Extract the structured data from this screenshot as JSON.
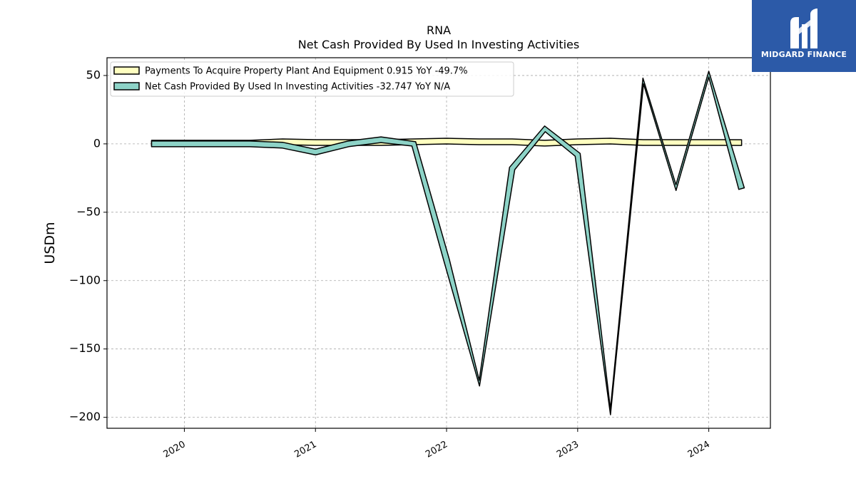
{
  "chart_data": {
    "type": "area",
    "title": "RNA",
    "subtitle": "Net Cash Provided By Used In Investing Activities",
    "ylabel": "USDm",
    "xlabel": "",
    "ylim": [
      -208,
      63
    ],
    "xlim": [
      2019.41,
      2024.47
    ],
    "yticks": [
      50,
      0,
      -50,
      -100,
      -150,
      -200
    ],
    "ytick_labels": [
      "50",
      "0",
      "−50",
      "−100",
      "−150",
      "−200"
    ],
    "xticks": [
      2020,
      2021,
      2022,
      2023,
      2024
    ],
    "xtick_labels": [
      "2020",
      "2021",
      "2022",
      "2023",
      "2024"
    ],
    "grid": true,
    "legend_position": "top-left",
    "x": [
      2019.75,
      2020.0,
      2020.25,
      2020.5,
      2020.75,
      2021.0,
      2021.25,
      2021.5,
      2021.75,
      2022.0,
      2022.25,
      2022.5,
      2022.75,
      2023.0,
      2023.25,
      2023.5,
      2023.75,
      2024.0,
      2024.25
    ],
    "series": [
      {
        "name": "Payments To Acquire Property Plant And Equipment",
        "legend_label": "Payments To Acquire Property Plant And Equipment  0.915 YoY -49.7%",
        "color": "#ffffc0",
        "values": [
          0.5,
          0.5,
          0.5,
          0.5,
          1.5,
          1.0,
          1.0,
          1.0,
          1.5,
          2.0,
          1.5,
          1.5,
          0.5,
          1.5,
          2.0,
          1.0,
          1.0,
          1.0,
          0.915
        ]
      },
      {
        "name": "Net Cash Provided By Used In Investing Activities",
        "legend_label": "Net Cash Provided By Used In Investing Activities  -32.747 YoY N/A",
        "color": "#8dd3c7",
        "values": [
          0,
          0,
          0,
          0,
          -1,
          -6,
          0,
          3,
          0,
          -85,
          -175,
          -18,
          11,
          -8,
          -196,
          46,
          -32,
          51,
          -32.747
        ]
      }
    ]
  },
  "logo": {
    "text": "MIDGARD FINANCE",
    "color": "#2c5aa8"
  }
}
